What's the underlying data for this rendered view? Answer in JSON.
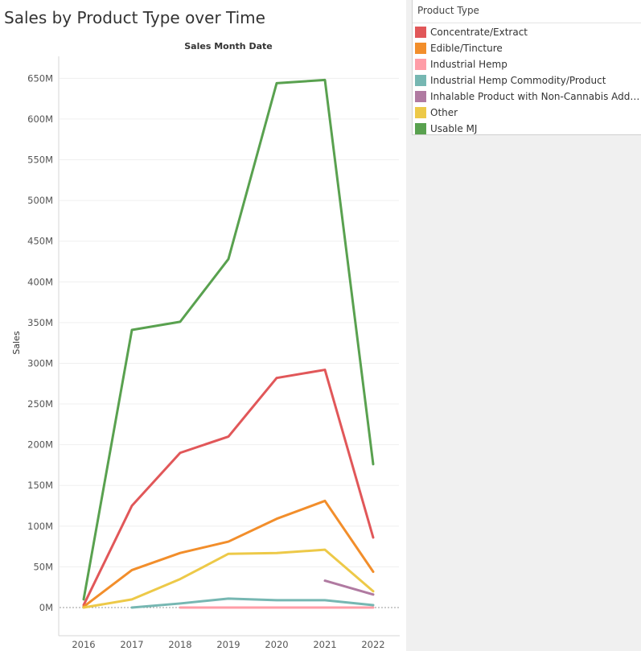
{
  "chart_data": {
    "type": "line",
    "title": "Sales by Product Type over Time",
    "xlabel": "Sales Month Date",
    "ylabel": "Sales",
    "x": [
      "2016",
      "2017",
      "2018",
      "2019",
      "2020",
      "2021",
      "2022"
    ],
    "ylim": [
      0,
      680
    ],
    "yticks": [
      0,
      50,
      100,
      150,
      200,
      250,
      300,
      350,
      400,
      450,
      500,
      550,
      600,
      650
    ],
    "ytick_labels": [
      "0M",
      "50M",
      "100M",
      "150M",
      "200M",
      "250M",
      "300M",
      "350M",
      "400M",
      "450M",
      "500M",
      "550M",
      "600M",
      "650M"
    ],
    "grid": true,
    "legend_title": "Product Type",
    "legend_position": "right",
    "series": [
      {
        "name": "Concentrate/Extract",
        "color": "#e15759",
        "values": [
          3,
          125,
          190,
          210,
          282,
          292,
          86
        ]
      },
      {
        "name": "Edible/Tincture",
        "color": "#f28e2b",
        "values": [
          1,
          46,
          67,
          81,
          109,
          131,
          44
        ]
      },
      {
        "name": "Industrial Hemp",
        "color": "#ff9da7",
        "values": [
          null,
          null,
          0,
          0,
          0,
          0,
          0
        ]
      },
      {
        "name": "Industrial Hemp Commodity/Product",
        "color": "#76b7b2",
        "values": [
          null,
          0,
          5,
          11,
          9,
          9,
          3
        ]
      },
      {
        "name": "Inhalable Product with Non-Cannabis Additiv..",
        "color": "#b07aa1",
        "values": [
          null,
          null,
          null,
          null,
          null,
          33,
          16
        ]
      },
      {
        "name": "Other",
        "color": "#edc948",
        "values": [
          0,
          10,
          35,
          66,
          67,
          71,
          20
        ]
      },
      {
        "name": "Usable MJ",
        "color": "#59a14f",
        "values": [
          10,
          341,
          351,
          428,
          644,
          648,
          176
        ]
      }
    ]
  }
}
